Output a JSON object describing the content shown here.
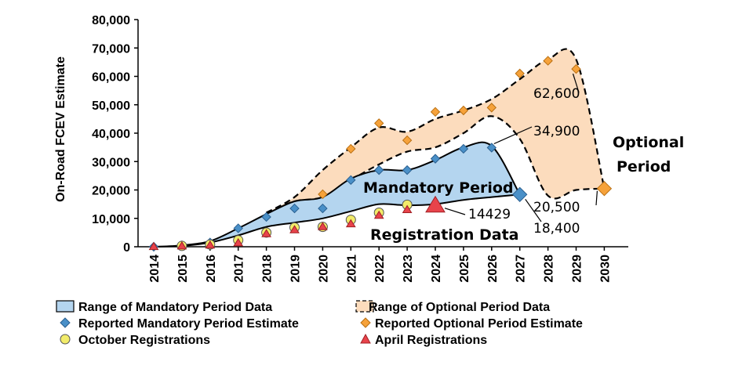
{
  "chart_data": {
    "type": "area",
    "ylabel": "On-Road FCEV Estimate",
    "ylim": [
      0,
      80000
    ],
    "yticks": [
      0,
      10000,
      20000,
      30000,
      40000,
      50000,
      60000,
      70000,
      80000
    ],
    "ytick_labels": [
      "0",
      "10,000",
      "20,000",
      "30,000",
      "40,000",
      "50,000",
      "60,000",
      "70,000",
      "80,000"
    ],
    "categories": [
      "2014",
      "2015",
      "2016",
      "2017",
      "2018",
      "2019",
      "2020",
      "2021",
      "2022",
      "2023",
      "2024",
      "2025",
      "2026",
      "2027",
      "2028",
      "2029",
      "2030"
    ],
    "mandatory_range": {
      "upper": {
        "x": [
          2014,
          2015,
          2016,
          2017,
          2018,
          2019,
          2020,
          2021,
          2022,
          2023,
          2024,
          2025,
          2026,
          2027
        ],
        "y": [
          0,
          500,
          2000,
          6500,
          11500,
          16000,
          17500,
          24000,
          27000,
          27000,
          30500,
          35000,
          35500,
          18400
        ]
      },
      "lower": {
        "x": [
          2014,
          2015,
          2016,
          2017,
          2018,
          2019,
          2020,
          2021,
          2022,
          2023,
          2024,
          2025,
          2026,
          2027
        ],
        "y": [
          0,
          300,
          1500,
          4000,
          7000,
          8500,
          10000,
          12500,
          15000,
          14600,
          15000,
          16500,
          17500,
          18400
        ]
      }
    },
    "optional_range": {
      "upper": {
        "x": [
          2018,
          2019,
          2020,
          2021,
          2022,
          2023,
          2024,
          2025,
          2026,
          2027,
          2028,
          2029,
          2030
        ],
        "y": [
          12000,
          17500,
          27000,
          35000,
          42000,
          40500,
          45000,
          48000,
          52000,
          59000,
          66000,
          66000,
          20500
        ]
      },
      "lower": {
        "x": [
          2018,
          2019,
          2020,
          2021,
          2022,
          2023,
          2024,
          2025,
          2026,
          2027,
          2028,
          2029,
          2030
        ],
        "y": [
          12000,
          16000,
          17500,
          23500,
          29000,
          33500,
          35000,
          40000,
          46000,
          38000,
          18000,
          20000,
          20500
        ]
      }
    },
    "series": [
      {
        "name": "Reported Mandatory Period Estimate",
        "marker": "diamond",
        "color": "#4a90c8",
        "x": [
          2014,
          2015,
          2016,
          2017,
          2018,
          2019,
          2020,
          2021,
          2022,
          2023,
          2024,
          2025,
          2026,
          2027
        ],
        "y": [
          0,
          500,
          1500,
          6500,
          10500,
          13500,
          13500,
          23500,
          27000,
          27000,
          31000,
          34500,
          34900,
          18400
        ]
      },
      {
        "name": "Reported Optional Period Estimate",
        "marker": "diamond",
        "color": "#f6a23a",
        "x": [
          2020,
          2021,
          2022,
          2023,
          2024,
          2025,
          2026,
          2027,
          2028,
          2029,
          2030
        ],
        "y": [
          18500,
          34500,
          43500,
          37500,
          47500,
          48000,
          49000,
          61000,
          65500,
          62600,
          20500
        ]
      },
      {
        "name": "October Registrations",
        "marker": "circle",
        "color": "#f2ec6a",
        "x": [
          2015,
          2016,
          2017,
          2018,
          2019,
          2020,
          2021,
          2022,
          2023
        ],
        "y": [
          300,
          800,
          2300,
          5000,
          6800,
          7000,
          9500,
          12000,
          14800
        ]
      },
      {
        "name": "April Registrations",
        "marker": "triangle",
        "color": "#e8434b",
        "x": [
          2014,
          2015,
          2016,
          2017,
          2018,
          2019,
          2020,
          2021,
          2022,
          2023,
          2024
        ],
        "y": [
          0,
          200,
          500,
          1300,
          4500,
          5900,
          7000,
          8000,
          11000,
          13000,
          14429
        ]
      }
    ],
    "annotations": [
      {
        "text": "62,600",
        "x": 2029,
        "y": 62600
      },
      {
        "text": "34,900",
        "x": 2026,
        "y": 34900
      },
      {
        "text": "14429",
        "x": 2024,
        "y": 14429
      },
      {
        "text": "20,500",
        "x": 2030,
        "y": 20500
      },
      {
        "text": "18,400",
        "x": 2027,
        "y": 18400
      }
    ],
    "region_labels": [
      "Mandatory Period",
      "Registration Data",
      "Optional",
      "Period"
    ],
    "legend": {
      "placement": "bottom",
      "items": [
        {
          "label": "Range of Mandatory Period Data",
          "swatch": "mandatory-fill"
        },
        {
          "label": "Range of Optional Period Data",
          "swatch": "optional-fill"
        },
        {
          "label": "Reported Mandatory Period Estimate",
          "swatch": "blue-diamond"
        },
        {
          "label": "Reported Optional Period Estimate",
          "swatch": "orange-diamond"
        },
        {
          "label": "October Registrations",
          "swatch": "yellow-circle"
        },
        {
          "label": "April Registrations",
          "swatch": "red-triangle"
        }
      ]
    },
    "colors": {
      "mandatory_fill": "#b4d5ef",
      "optional_fill": "#fcdcbd",
      "blue": "#4a90c8",
      "orange": "#f6a23a",
      "yellow": "#f2ec6a",
      "red": "#e8434b"
    }
  }
}
